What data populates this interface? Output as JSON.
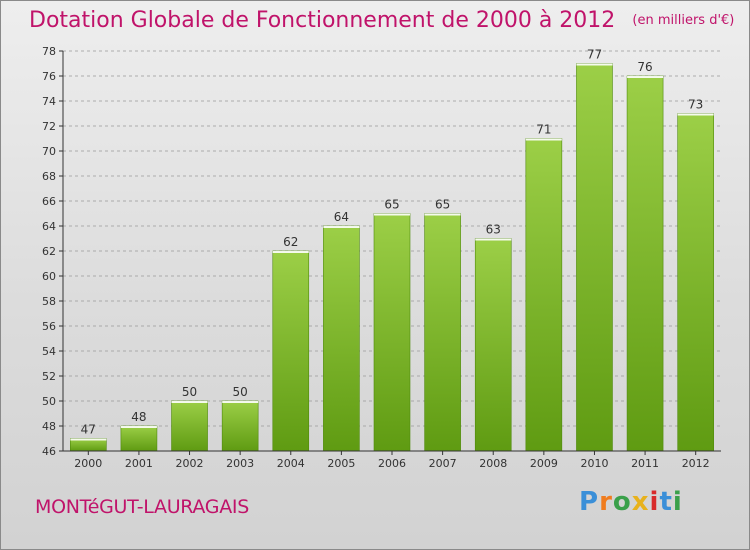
{
  "title": "Dotation Globale de Fonctionnement de 2000 à 2012",
  "unit": "(en milliers d'€)",
  "commune": "MONTéGUT-LAURAGAIS",
  "logo": {
    "text": "Proxiti",
    "colors": [
      "#3a8fd8",
      "#f07c1e",
      "#3aa04a",
      "#e8b21c",
      "#d82a2a",
      "#3a8fd8",
      "#3aa04a"
    ]
  },
  "colors": {
    "bar_light": "#9ccf47",
    "bar_dark": "#5f9b12",
    "title": "#c0136a",
    "axis": "#333333",
    "grid": "#999999"
  },
  "chart_data": {
    "type": "bar",
    "title": "Dotation Globale de Fonctionnement de 2000 à 2012",
    "subtitle": "(en milliers d'€)",
    "categories": [
      "2000",
      "2001",
      "2002",
      "2003",
      "2004",
      "2005",
      "2006",
      "2007",
      "2008",
      "2009",
      "2010",
      "2011",
      "2012"
    ],
    "values": [
      47,
      48,
      50,
      50,
      62,
      64,
      65,
      65,
      63,
      71,
      77,
      76,
      73
    ],
    "ylim": [
      46,
      78
    ],
    "yticks": [
      46,
      48,
      50,
      52,
      54,
      56,
      58,
      60,
      62,
      64,
      66,
      68,
      70,
      72,
      74,
      76,
      78
    ],
    "grid": true,
    "xlabel": "",
    "ylabel": ""
  }
}
